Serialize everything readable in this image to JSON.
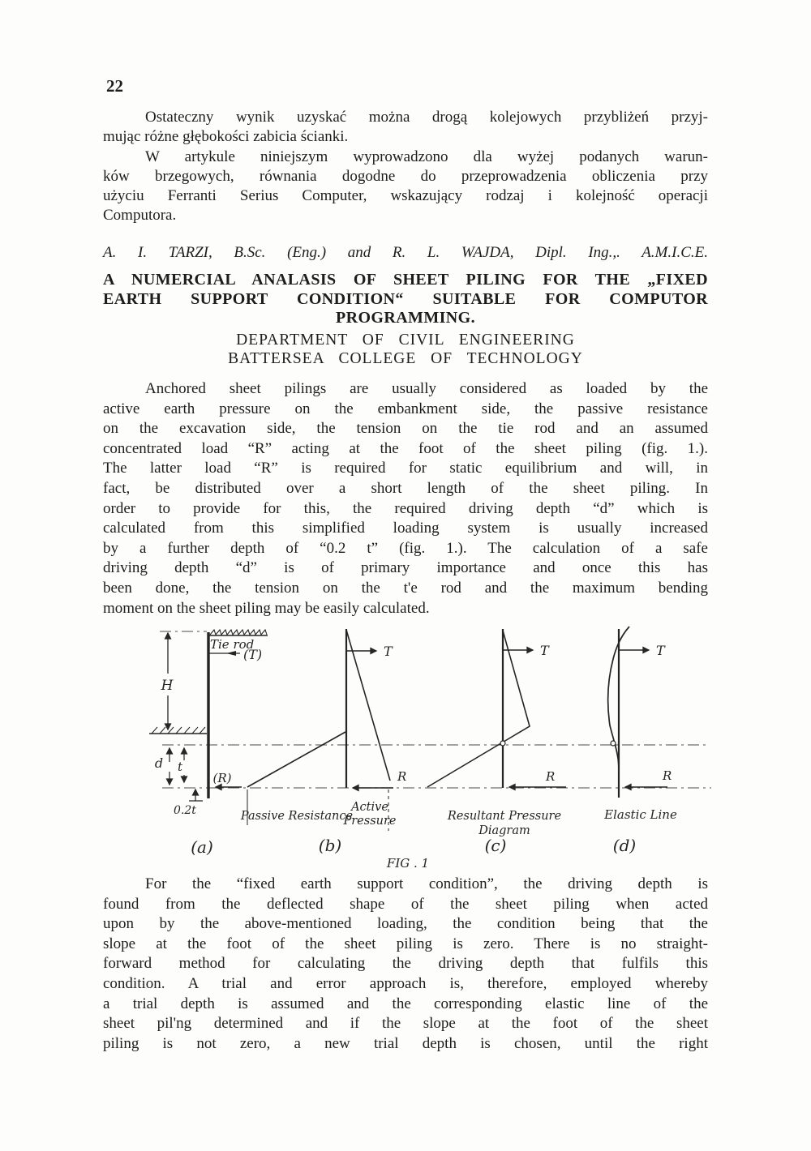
{
  "page": {
    "number": "22"
  },
  "intro_pl": {
    "paragraphs": [
      [
        "Ostateczny wynik uzyskać można drogą kolejowych przybliżeń przyj-",
        "mując różne głębokości zabicia ścianki."
      ],
      [
        "W artykule niniejszym wyprowadzono dla wyżej podanych warun-",
        "ków brzegowych, równania dogodne do przeprowadzenia obliczenia przy",
        "użyciu Ferranti Serius Computer, wskazujący rodzaj i kolejność operacji",
        "Computora."
      ]
    ]
  },
  "authors": "A. I. TARZI, B.Sc. (Eng.) and R. L. WAJDA, Dipl. Ing.,. A.M.I.C.E.",
  "title": {
    "paragraphs": [
      [
        "A NUMERCIAL ANALASIS OF SHEET PILING FOR THE „FIXED",
        "EARTH SUPPORT CONDITION“ SUITABLE FOR COMPUTOR",
        "PROGRAMMING."
      ]
    ]
  },
  "department": "DEPARTMENT OF CIVIL ENGINEERING",
  "college": "BATTERSEA COLLEGE OF TECHNOLOGY",
  "body1": {
    "paragraphs": [
      [
        "Anchored sheet pilings are usually considered as loaded by the",
        "active earth pressure on the embankment side, the passive resistance",
        "on the excavation side, the tension on the tie rod and an assumed",
        "concentrated load “R” acting at the foot of the sheet piling (fig. 1.).",
        "The latter load “R” is required for static equilibrium and will, in",
        "fact, be distributed over a short length of the sheet piling.  In",
        "order to provide for this, the required driving depth “d” which is",
        "calculated from this simplified loading system is usually increased",
        "by a further depth of “0.2 t” (fig. 1.).  The calculation of a safe",
        "driving depth “d” is of primary importance and once this has",
        "been done, the tension on the t'e rod and the maximum bending",
        "moment on the sheet piling may be easily calculated."
      ]
    ]
  },
  "body2": {
    "paragraphs": [
      [
        "For the “fixed earth support condition”, the driving depth is",
        "found from the deflected shape of the sheet piling when acted",
        "upon by the above-mentioned loading, the condition being that the",
        "slope at the foot of the sheet piling is zero.  There is no straight-",
        "forward method for calculating the driving depth that fulfils this",
        "condition.  A trial and error approach is, therefore, employed whereby",
        "a trial depth is assumed and the corresponding elastic line of the",
        "sheet pil'ng determined and if the slope at the foot of the sheet",
        "piling is not zero, a new trial depth is chosen, until the right"
      ]
    ]
  },
  "figure": {
    "caption": "FIG . 1",
    "panel_labels": [
      "(a)",
      "(b)",
      "(c)",
      "(d)"
    ],
    "tie_rod_label": "Tie rod",
    "tie_rod_t": "(T)",
    "dim_h": "H",
    "dim_d": "d",
    "dim_t": "t",
    "dim_02t": "0.2t",
    "r_anchor": "(R)",
    "t_label": "T",
    "r_label": "R",
    "passive_label": "Passive Resistance",
    "active_label_1": "Active",
    "active_label_2": "Pressure",
    "resultant_label_1": "Resultant Pressure",
    "resultant_label_2": "Diagram",
    "elastic_label": "Elastic Line"
  }
}
